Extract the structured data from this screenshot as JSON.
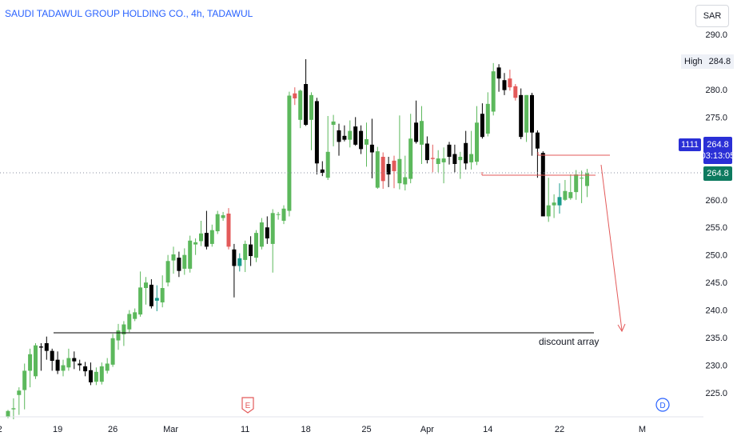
{
  "header": {
    "title": "SAUDI TADAWUL GROUP HOLDING CO., 4h, TADAWUL",
    "currency": "SAR"
  },
  "badges": {
    "high_label": "High",
    "high_value": "284.8",
    "ticker_id": "1111",
    "price": "264.8",
    "countdown": "03:13:05",
    "last_price": "264.8"
  },
  "events": {
    "earnings": "E",
    "dividend": "D"
  },
  "annotations": {
    "discount_array": "discount array",
    "discount_level": 235.6
  },
  "chart_data": {
    "type": "candlestick",
    "ylim": [
      220.5,
      294.5
    ],
    "yticks": [
      290.0,
      285.0,
      280.0,
      275.0,
      270.0,
      265.0,
      260.0,
      255.0,
      250.0,
      245.0,
      240.0,
      235.0,
      230.0,
      225.0
    ],
    "xticks": [
      {
        "label": "2",
        "bar": -1.5
      },
      {
        "label": "19",
        "bar": 9
      },
      {
        "label": "26",
        "bar": 19
      },
      {
        "label": "Mar",
        "bar": 29.5
      },
      {
        "label": "11",
        "bar": 43
      },
      {
        "label": "18",
        "bar": 54
      },
      {
        "label": "25",
        "bar": 65
      },
      {
        "label": "Apr",
        "bar": 76
      },
      {
        "label": "14",
        "bar": 87
      },
      {
        "label": "22",
        "bar": 100
      },
      {
        "label": "M",
        "bar": 115
      }
    ],
    "colors": {
      "up": "#5cb85c",
      "down": "#000000",
      "up_special": "#e35a5a",
      "down_special": "#1a9b8c"
    },
    "candles": [
      [
        220.6,
        221.7,
        220.4,
        221.9,
        "#5cb85c"
      ],
      [
        222.0,
        222.2,
        220.2,
        224.0,
        "#5cb85c"
      ],
      [
        224.6,
        225.4,
        221.0,
        226.0,
        "#5cb85c"
      ],
      [
        225.5,
        229.0,
        222.0,
        230.3,
        "#5cb85c"
      ],
      [
        229.0,
        232.0,
        226.0,
        233.0,
        "#5cb85c"
      ],
      [
        228.0,
        233.6,
        227.5,
        234.0,
        "#5cb85c"
      ],
      [
        233.2,
        233.4,
        229.0,
        234.0,
        "#000000"
      ],
      [
        234.0,
        232.6,
        231.0,
        235.2,
        "#000000"
      ],
      [
        232.6,
        230.8,
        229.0,
        233.0,
        "#000000"
      ],
      [
        231.0,
        229.0,
        228.4,
        232.5,
        "#000000"
      ],
      [
        229.0,
        230.0,
        228.0,
        231.0,
        "#5cb85c"
      ],
      [
        229.6,
        231.3,
        229.0,
        233.0,
        "#5cb85c"
      ],
      [
        231.3,
        230.7,
        229.3,
        232.5,
        "#000000"
      ],
      [
        230.3,
        230.0,
        229.0,
        231.0,
        "#000000"
      ],
      [
        229.8,
        228.9,
        228.0,
        230.6,
        "#000000"
      ],
      [
        229.1,
        226.9,
        226.4,
        230.5,
        "#000000"
      ],
      [
        227.0,
        228.8,
        226.4,
        229.6,
        "#5cb85c"
      ],
      [
        227.0,
        229.8,
        226.5,
        230.5,
        "#5cb85c"
      ],
      [
        229.0,
        230.3,
        228.5,
        231.3,
        "#5cb85c"
      ],
      [
        230.1,
        234.9,
        229.7,
        235.7,
        "#5cb85c"
      ],
      [
        234.5,
        236.3,
        232.8,
        237.5,
        "#5cb85c"
      ],
      [
        235.6,
        237.4,
        233.5,
        238.0,
        "#5cb85c"
      ],
      [
        236.5,
        239.3,
        236.0,
        240.0,
        "#5cb85c"
      ],
      [
        238.4,
        239.6,
        238.0,
        240.3,
        "#5cb85c"
      ],
      [
        239.2,
        244.1,
        238.8,
        247.0,
        "#5cb85c"
      ],
      [
        244.0,
        245.0,
        241.0,
        246.0,
        "#5cb85c"
      ],
      [
        244.6,
        240.7,
        240.3,
        245.6,
        "#000000"
      ],
      [
        242.2,
        241.7,
        239.8,
        244.5,
        "#1a9b8c"
      ],
      [
        241.4,
        244.0,
        240.5,
        246.3,
        "#5cb85c"
      ],
      [
        245.0,
        248.9,
        244.3,
        250.0,
        "#5cb85c"
      ],
      [
        249.0,
        250.1,
        246.6,
        251.5,
        "#5cb85c"
      ],
      [
        249.5,
        247.1,
        246.0,
        250.6,
        "#000000"
      ],
      [
        247.5,
        250.0,
        246.4,
        251.2,
        "#5cb85c"
      ],
      [
        247.5,
        252.6,
        246.8,
        253.5,
        "#5cb85c"
      ],
      [
        251.9,
        252.3,
        250.0,
        253.0,
        "#5cb85c"
      ],
      [
        252.5,
        253.9,
        251.6,
        256.2,
        "#5cb85c"
      ],
      [
        254.0,
        251.5,
        251.0,
        258.0,
        "#000000"
      ],
      [
        252.0,
        254.5,
        251.5,
        255.5,
        "#5cb85c"
      ],
      [
        254.3,
        257.4,
        253.8,
        258.0,
        "#5cb85c"
      ],
      [
        257.2,
        256.7,
        256.2,
        257.8,
        "#5cb85c"
      ],
      [
        257.5,
        251.5,
        251.0,
        258.5,
        "#e35a5a"
      ],
      [
        251.0,
        248.0,
        242.3,
        252.0,
        "#000000"
      ],
      [
        248.0,
        249.4,
        247.0,
        250.3,
        "#1a9b8c"
      ],
      [
        249.1,
        252.0,
        246.9,
        252.6,
        "#5cb85c"
      ],
      [
        251.9,
        249.8,
        248.0,
        253.4,
        "#000000"
      ],
      [
        249.5,
        254.0,
        248.7,
        254.5,
        "#5cb85c"
      ],
      [
        251.5,
        255.9,
        251.0,
        256.7,
        "#5cb85c"
      ],
      [
        255.0,
        253.0,
        252.0,
        257.0,
        "#000000"
      ],
      [
        252.0,
        257.6,
        246.8,
        258.3,
        "#5cb85c"
      ],
      [
        257.3,
        257.4,
        256.4,
        257.8,
        "#5cb85c"
      ],
      [
        256.2,
        258.4,
        255.6,
        259.0,
        "#5cb85c"
      ],
      [
        258.0,
        278.9,
        257.0,
        279.6,
        "#5cb85c"
      ],
      [
        278.4,
        279.3,
        277.2,
        280.4,
        "#e35a5a"
      ],
      [
        274.5,
        279.8,
        273.0,
        280.0,
        "#5cb85c"
      ],
      [
        281.0,
        273.6,
        273.4,
        285.5,
        "#000000"
      ],
      [
        274.5,
        279.0,
        269.0,
        279.5,
        "#5cb85c"
      ],
      [
        277.9,
        266.6,
        264.6,
        278.5,
        "#000000"
      ],
      [
        265.5,
        264.9,
        264.3,
        267.0,
        "#000000"
      ],
      [
        264.0,
        268.7,
        263.6,
        275.2,
        "#5cb85c"
      ],
      [
        273.6,
        274.2,
        269.7,
        275.4,
        "#5cb85c"
      ],
      [
        272.6,
        270.5,
        268.0,
        273.8,
        "#000000"
      ],
      [
        271.6,
        270.9,
        270.6,
        273.5,
        "#000000"
      ],
      [
        272.5,
        270.9,
        269.5,
        274.4,
        "#5cb85c"
      ],
      [
        273.3,
        270.0,
        269.8,
        275.0,
        "#000000"
      ],
      [
        272.5,
        269.2,
        268.3,
        273.5,
        "#000000"
      ],
      [
        271.0,
        270.0,
        266.0,
        274.0,
        "#5cb85c"
      ],
      [
        270.0,
        268.6,
        263.9,
        274.7,
        "#000000"
      ],
      [
        268.8,
        262.2,
        262.0,
        269.6,
        "#5cb85c"
      ],
      [
        263.4,
        267.8,
        262.0,
        268.6,
        "#e35a5a"
      ],
      [
        266.5,
        264.6,
        262.3,
        267.8,
        "#000000"
      ],
      [
        265.2,
        267.1,
        262.1,
        268.0,
        "#e35a5a"
      ],
      [
        263.0,
        267.4,
        261.9,
        275.3,
        "#5cb85c"
      ],
      [
        262.8,
        264.1,
        261.7,
        268.0,
        "#5cb85c"
      ],
      [
        263.8,
        271.1,
        263.0,
        275.6,
        "#5cb85c"
      ],
      [
        274.0,
        270.5,
        270.2,
        278.0,
        "#000000"
      ],
      [
        270.0,
        274.3,
        266.5,
        277.0,
        "#5cb85c"
      ],
      [
        270.2,
        267.2,
        266.6,
        271.5,
        "#000000"
      ],
      [
        267.6,
        267.4,
        265.0,
        270.0,
        "#e35a5a"
      ],
      [
        266.5,
        267.5,
        265.0,
        269.0,
        "#5cb85c"
      ],
      [
        266.8,
        267.5,
        263.0,
        269.5,
        "#5cb85c"
      ],
      [
        270.0,
        267.8,
        266.4,
        270.5,
        "#000000"
      ],
      [
        268.3,
        266.5,
        265.0,
        270.0,
        "#000000"
      ],
      [
        267.2,
        267.8,
        263.8,
        268.7,
        "#5cb85c"
      ],
      [
        270.3,
        266.6,
        265.5,
        272.5,
        "#000000"
      ],
      [
        266.8,
        268.3,
        265.5,
        272.5,
        "#5cb85c"
      ],
      [
        266.9,
        274.0,
        266.3,
        277.0,
        "#5cb85c"
      ],
      [
        275.6,
        271.4,
        271.1,
        277.5,
        "#000000"
      ],
      [
        272.0,
        277.4,
        271.5,
        279.5,
        "#5cb85c"
      ],
      [
        276.0,
        283.3,
        275.3,
        284.8,
        "#5cb85c"
      ],
      [
        284.0,
        282.0,
        279.6,
        284.6,
        "#000000"
      ],
      [
        281.7,
        279.9,
        279.0,
        283.0,
        "#000000"
      ],
      [
        282.0,
        280.4,
        279.8,
        283.6,
        "#e35a5a"
      ],
      [
        280.6,
        278.5,
        278.0,
        281.0,
        "#e35a5a"
      ],
      [
        279.0,
        271.4,
        271.0,
        280.2,
        "#000000"
      ],
      [
        279.0,
        272.2,
        270.5,
        279.0,
        "#5cb85c"
      ],
      [
        279.0,
        272.2,
        268.0,
        279.4,
        "#000000"
      ],
      [
        272.2,
        269.3,
        264.0,
        272.6,
        "#000000"
      ],
      [
        268.5,
        257.0,
        257.5,
        268.8,
        "#000000"
      ],
      [
        257.0,
        259.0,
        256.0,
        264.0,
        "#5cb85c"
      ],
      [
        259.0,
        259.5,
        256.7,
        261.0,
        "#5cb85c"
      ],
      [
        259.0,
        260.5,
        257.5,
        263.0,
        "#1a9b8c"
      ],
      [
        261.6,
        260.0,
        259.8,
        263.6,
        "#5cb85c"
      ],
      [
        260.3,
        261.4,
        260.0,
        264.6,
        "#5cb85c"
      ],
      [
        261.4,
        264.6,
        260.0,
        265.4,
        "#5cb85c"
      ],
      [
        264.0,
        264.0,
        259.4,
        265.3,
        "#5cb85c"
      ],
      [
        262.5,
        264.8,
        260.5,
        265.6,
        "#5cb85c"
      ]
    ]
  }
}
